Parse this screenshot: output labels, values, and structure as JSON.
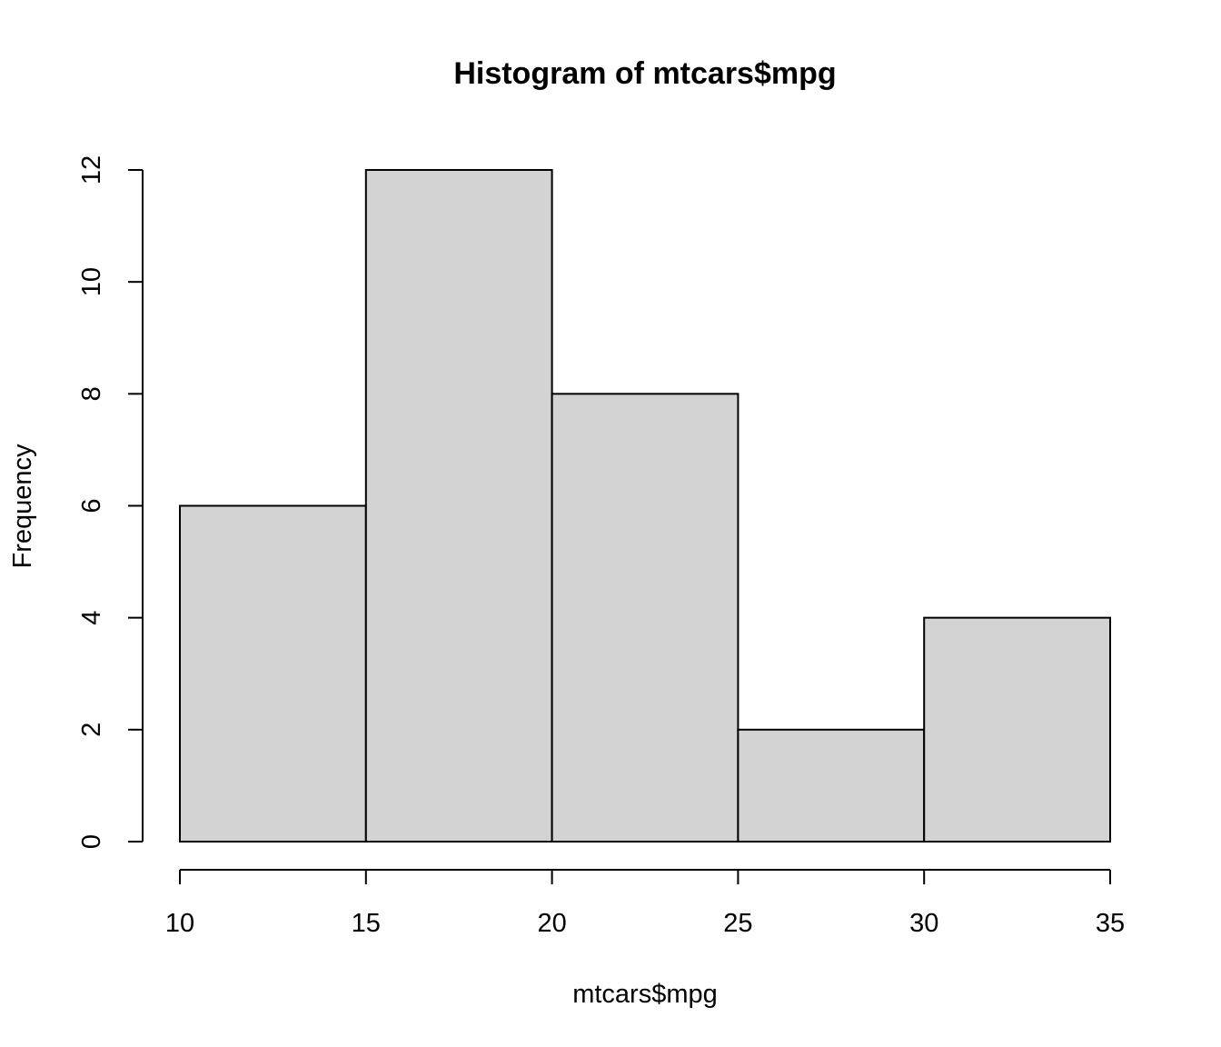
{
  "chart_data": {
    "type": "bar",
    "title": "Histogram of mtcars$mpg",
    "xlabel": "mtcars$mpg",
    "ylabel": "Frequency",
    "bins": [
      {
        "start": 10,
        "end": 15,
        "count": 6
      },
      {
        "start": 15,
        "end": 20,
        "count": 12
      },
      {
        "start": 20,
        "end": 25,
        "count": 8
      },
      {
        "start": 25,
        "end": 30,
        "count": 2
      },
      {
        "start": 30,
        "end": 35,
        "count": 4
      }
    ],
    "categories": [
      "10-15",
      "15-20",
      "20-25",
      "25-30",
      "30-35"
    ],
    "values": [
      6,
      12,
      8,
      2,
      4
    ],
    "xlim": [
      10,
      35
    ],
    "ylim": [
      0,
      12
    ],
    "x_ticks": [
      10,
      15,
      20,
      25,
      30,
      35
    ],
    "y_ticks": [
      0,
      2,
      4,
      6,
      8,
      10,
      12
    ],
    "bar_color": "#d3d3d3",
    "bar_border_color": "#000000",
    "grid": false,
    "legend": "none"
  }
}
